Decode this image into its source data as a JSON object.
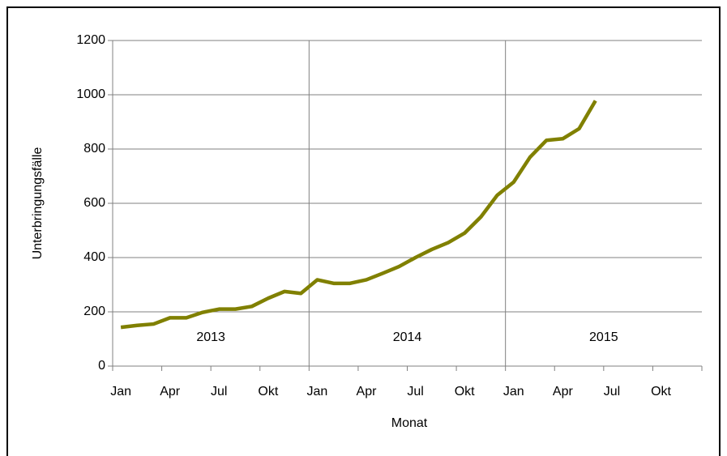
{
  "chart_data": {
    "type": "line",
    "x_label": "Monat",
    "y_label": "Unterbringungsfälle",
    "categories": [
      "Jan",
      null,
      null,
      "Apr",
      null,
      null,
      "Jul",
      null,
      null,
      "Okt",
      null,
      null,
      "Jan",
      null,
      null,
      "Apr",
      null,
      null,
      "Jul",
      null,
      null,
      "Okt",
      null,
      null,
      "Jan",
      null,
      null,
      "Apr",
      null,
      null,
      "Jul",
      null,
      null,
      "Okt",
      null,
      null
    ],
    "annotations": [
      "2013",
      "2014",
      "2015"
    ],
    "series": [
      {
        "color": "#808000",
        "values": [
          143,
          150,
          155,
          178,
          178,
          198,
          210,
          210,
          220,
          250,
          275,
          268,
          318,
          305,
          305,
          318,
          342,
          367,
          400,
          430,
          455,
          490,
          550,
          630,
          678,
          770,
          832,
          838,
          875,
          978,
          null,
          null,
          null,
          null,
          null,
          null
        ]
      }
    ],
    "ylim": [
      0,
      1200
    ],
    "yticks": [
      0,
      200,
      400,
      600,
      800,
      1000,
      1200
    ],
    "grid": true
  }
}
